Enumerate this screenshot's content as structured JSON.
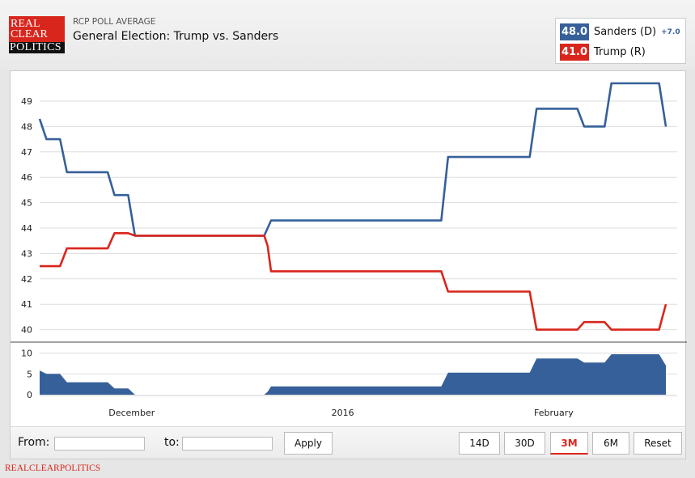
{
  "header": {
    "logo": "REAL CLEAR POLITICS",
    "logo_lines": [
      "REAL",
      "CLEAR",
      "POLITICS"
    ],
    "subtitle": "RCP POLL AVERAGE",
    "title": "General Election: Trump vs. Sanders"
  },
  "legend": {
    "items": [
      {
        "value": "48.0",
        "name": "Sanders (D)",
        "spread": "+7.0",
        "color": "#36609a"
      },
      {
        "value": "41.0",
        "name": "Trump (R)",
        "color": "#d9261c"
      }
    ]
  },
  "controls": {
    "from_label": "From:",
    "from_value": "",
    "to_label": "to:",
    "to_value": "",
    "apply": "Apply",
    "ranges": [
      {
        "label": "14D",
        "active": false
      },
      {
        "label": "30D",
        "active": false
      },
      {
        "label": "3M",
        "active": true
      },
      {
        "label": "6M",
        "active": false
      },
      {
        "label": "Reset",
        "active": false
      }
    ]
  },
  "footer": {
    "brand": "REALCLEARPOLITICS"
  },
  "chart_data": [
    {
      "type": "line",
      "title": "",
      "xlabel": "",
      "ylabel": "",
      "x_range": [
        "2015-11-17",
        "2016-02-17"
      ],
      "x_ticks": [
        {
          "date": "2015-12-01",
          "label": "December"
        },
        {
          "date": "2016-01-01",
          "label": "2016"
        },
        {
          "date": "2016-02-01",
          "label": "February"
        }
      ],
      "ylim": [
        39.5,
        49.8
      ],
      "y_ticks": [
        40,
        41,
        42,
        43,
        44,
        45,
        46,
        47,
        48,
        49
      ],
      "grid": true,
      "series": [
        {
          "name": "Sanders (D)",
          "color": "#36609a",
          "points": [
            [
              "2015-11-17",
              48.3
            ],
            [
              "2015-11-18",
              47.5
            ],
            [
              "2015-11-20",
              47.5
            ],
            [
              "2015-11-21",
              46.2
            ],
            [
              "2015-11-27",
              46.2
            ],
            [
              "2015-11-28",
              45.3
            ],
            [
              "2015-11-30",
              45.3
            ],
            [
              "2015-12-01",
              43.7
            ],
            [
              "2015-12-20",
              43.7
            ],
            [
              "2015-12-21",
              44.3
            ],
            [
              "2016-01-15",
              44.3
            ],
            [
              "2016-01-16",
              46.8
            ],
            [
              "2016-01-28",
              46.8
            ],
            [
              "2016-01-29",
              48.7
            ],
            [
              "2016-02-04",
              48.7
            ],
            [
              "2016-02-05",
              48.0
            ],
            [
              "2016-02-08",
              48.0
            ],
            [
              "2016-02-09",
              49.7
            ],
            [
              "2016-02-16",
              49.7
            ],
            [
              "2016-02-17",
              48.0
            ]
          ]
        },
        {
          "name": "Trump (R)",
          "color": "#d9261c",
          "points": [
            [
              "2015-11-17",
              42.5
            ],
            [
              "2015-11-20",
              42.5
            ],
            [
              "2015-11-21",
              43.2
            ],
            [
              "2015-11-27",
              43.2
            ],
            [
              "2015-11-28",
              43.8
            ],
            [
              "2015-11-30",
              43.8
            ],
            [
              "2015-12-01",
              43.7
            ],
            [
              "2015-12-20",
              43.7
            ],
            [
              "2015-12-20T12:00",
              43.3
            ],
            [
              "2015-12-21",
              42.3
            ],
            [
              "2016-01-15",
              42.3
            ],
            [
              "2016-01-16",
              41.5
            ],
            [
              "2016-01-28",
              41.5
            ],
            [
              "2016-01-29",
              40.0
            ],
            [
              "2016-02-04",
              40.0
            ],
            [
              "2016-02-05",
              40.3
            ],
            [
              "2016-02-08",
              40.3
            ],
            [
              "2016-02-09",
              40.0
            ],
            [
              "2016-02-16",
              40.0
            ],
            [
              "2016-02-17",
              41.0
            ]
          ]
        }
      ]
    },
    {
      "type": "area",
      "title": "",
      "xlabel": "",
      "ylabel": "",
      "ylim": [
        0,
        10
      ],
      "y_ticks": [
        0,
        5,
        10
      ],
      "grid": true,
      "series": [
        {
          "color": "#36609a"
        }
      ]
    }
  ]
}
